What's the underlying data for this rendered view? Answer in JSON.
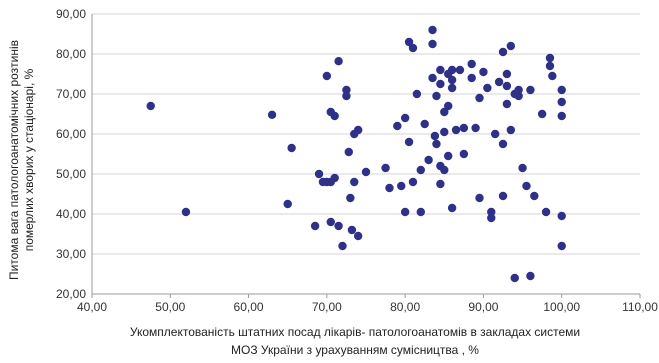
{
  "chart_data": {
    "type": "scatter",
    "title": "",
    "xlabel_lines": [
      "Укомплектованість штатних посад лікарів- патологоанатомів в закладах системи",
      "МОЗ України з урахуванням сумісництва , %"
    ],
    "ylabel_lines": [
      "Питома вага патологоанатомічних розтинів",
      "померлих хворих у стаціонарі, %"
    ],
    "xlim": [
      40,
      110
    ],
    "ylim": [
      20,
      90
    ],
    "xticks": [
      40,
      50,
      60,
      70,
      80,
      90,
      100,
      110
    ],
    "yticks": [
      20,
      30,
      40,
      50,
      60,
      70,
      80,
      90
    ],
    "xtick_labels": [
      "40,00",
      "50,00",
      "60,00",
      "70,00",
      "80,00",
      "90,00",
      "100,00",
      "110,00"
    ],
    "ytick_labels": [
      "20,00",
      "30,00",
      "40,00",
      "50,00",
      "60,00",
      "70,00",
      "80,00",
      "90,00"
    ],
    "grid": "horizontal",
    "marker_color": "#2f3189",
    "points": [
      [
        47.5,
        67.0
      ],
      [
        52.0,
        40.5
      ],
      [
        63.0,
        64.8
      ],
      [
        65.0,
        42.5
      ],
      [
        65.5,
        56.5
      ],
      [
        68.5,
        37.0
      ],
      [
        69.0,
        50.0
      ],
      [
        69.5,
        48.0
      ],
      [
        70.0,
        74.5
      ],
      [
        70.0,
        48.0
      ],
      [
        70.5,
        65.5
      ],
      [
        70.5,
        48.0
      ],
      [
        70.5,
        38.0
      ],
      [
        71.0,
        49.0
      ],
      [
        71.0,
        64.5
      ],
      [
        71.5,
        78.2
      ],
      [
        71.5,
        37.0
      ],
      [
        72.0,
        32.0
      ],
      [
        72.5,
        71.0
      ],
      [
        72.5,
        69.5
      ],
      [
        72.8,
        55.5
      ],
      [
        73.0,
        44.0
      ],
      [
        73.2,
        36.0
      ],
      [
        73.5,
        48.0
      ],
      [
        73.5,
        60.0
      ],
      [
        74.0,
        34.5
      ],
      [
        74.0,
        61.0
      ],
      [
        75.0,
        50.5
      ],
      [
        77.5,
        51.5
      ],
      [
        78.0,
        46.5
      ],
      [
        79.0,
        62.0
      ],
      [
        79.5,
        47.0
      ],
      [
        80.0,
        40.5
      ],
      [
        80.0,
        64.0
      ],
      [
        80.5,
        58.0
      ],
      [
        80.5,
        83.0
      ],
      [
        81.0,
        81.5
      ],
      [
        81.0,
        48.0
      ],
      [
        81.5,
        70.0
      ],
      [
        82.0,
        51.0
      ],
      [
        82.0,
        40.5
      ],
      [
        82.5,
        62.5
      ],
      [
        83.0,
        53.5
      ],
      [
        83.5,
        86.0
      ],
      [
        83.5,
        82.5
      ],
      [
        83.5,
        74.0
      ],
      [
        83.8,
        59.5
      ],
      [
        84.0,
        69.5
      ],
      [
        84.0,
        57.5
      ],
      [
        84.5,
        76.0
      ],
      [
        84.5,
        72.5
      ],
      [
        84.5,
        52.0
      ],
      [
        84.5,
        47.5
      ],
      [
        85.0,
        65.5
      ],
      [
        85.0,
        60.5
      ],
      [
        85.0,
        51.0
      ],
      [
        85.5,
        75.0
      ],
      [
        85.5,
        67.0
      ],
      [
        85.5,
        54.5
      ],
      [
        86.0,
        76.0
      ],
      [
        86.0,
        73.5
      ],
      [
        86.0,
        71.5
      ],
      [
        86.0,
        41.5
      ],
      [
        86.5,
        61.0
      ],
      [
        87.0,
        76.0
      ],
      [
        87.5,
        61.5
      ],
      [
        87.5,
        55.0
      ],
      [
        88.5,
        77.5
      ],
      [
        88.5,
        74.0
      ],
      [
        89.0,
        61.5
      ],
      [
        89.5,
        44.0
      ],
      [
        89.5,
        69.0
      ],
      [
        90.0,
        75.5
      ],
      [
        90.5,
        71.5
      ],
      [
        91.0,
        40.5
      ],
      [
        91.0,
        39.0
      ],
      [
        91.5,
        60.0
      ],
      [
        92.0,
        73.0
      ],
      [
        92.5,
        80.5
      ],
      [
        92.5,
        57.5
      ],
      [
        92.5,
        44.5
      ],
      [
        93.0,
        75.0
      ],
      [
        93.0,
        72.0
      ],
      [
        93.0,
        67.5
      ],
      [
        93.5,
        82.0
      ],
      [
        93.5,
        61.0
      ],
      [
        94.0,
        70.0
      ],
      [
        94.0,
        24.0
      ],
      [
        94.5,
        71.0
      ],
      [
        94.5,
        69.5
      ],
      [
        95.0,
        51.5
      ],
      [
        95.5,
        47.0
      ],
      [
        96.0,
        71.0
      ],
      [
        96.0,
        24.5
      ],
      [
        96.5,
        44.5
      ],
      [
        97.5,
        65.0
      ],
      [
        98.0,
        40.5
      ],
      [
        98.5,
        79.0
      ],
      [
        98.5,
        77.0
      ],
      [
        98.8,
        74.5
      ],
      [
        100.0,
        71.0
      ],
      [
        100.0,
        68.0
      ],
      [
        100.0,
        64.5
      ],
      [
        100.0,
        39.5
      ],
      [
        100.0,
        32.0
      ]
    ]
  }
}
